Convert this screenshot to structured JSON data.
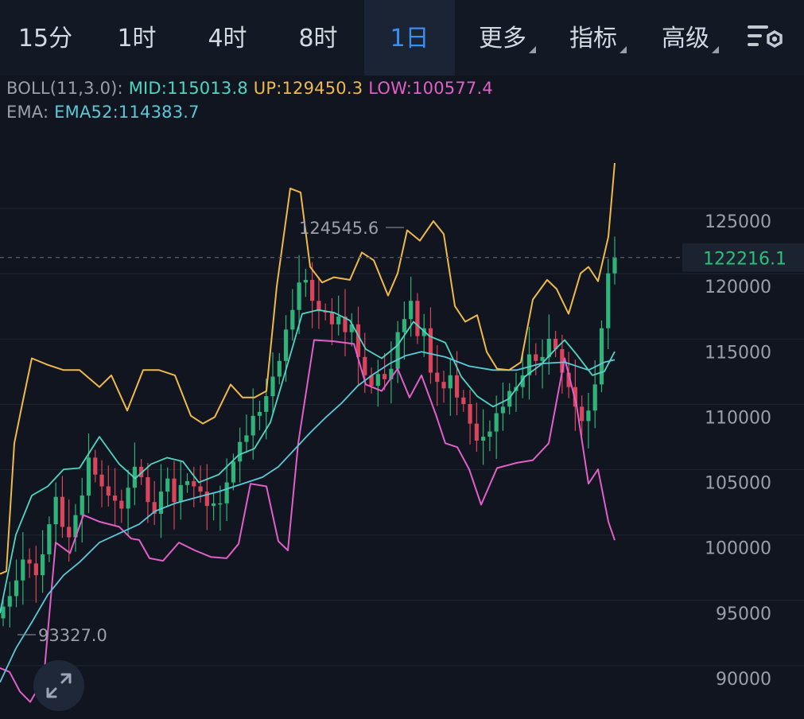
{
  "tabs": [
    {
      "label": "15分",
      "active": false,
      "has_menu": false
    },
    {
      "label": "1时",
      "active": false,
      "has_menu": false
    },
    {
      "label": "4时",
      "active": false,
      "has_menu": false
    },
    {
      "label": "8时",
      "active": false,
      "has_menu": false
    },
    {
      "label": "1日",
      "active": true,
      "has_menu": false
    },
    {
      "label": "更多",
      "active": false,
      "has_menu": true
    },
    {
      "label": "指标",
      "active": false,
      "has_menu": true
    },
    {
      "label": "高级",
      "active": false,
      "has_menu": true
    }
  ],
  "settings_icon": "chart-settings-icon",
  "expand_icon": "expand-arrows-icon",
  "indicators": {
    "boll": {
      "prefix": "BOLL(11,3.0):",
      "mid": "MID:115013.8",
      "up": "UP:129450.3",
      "low": "LOW:100577.4"
    },
    "ema": {
      "prefix": "EMA:",
      "ema52": "EMA52:114383.7"
    }
  },
  "colors": {
    "background": "#10151f",
    "tabbar": "#121824",
    "active_tab": "#3d8df0",
    "up_candle": "#2fb37a",
    "down_candle": "#d9455c",
    "boll_up": "#f0b94a",
    "boll_mid": "#4fd6c4",
    "boll_low": "#e060c8",
    "ema52": "#5cc8d8",
    "current_price": "#2fbf7a"
  },
  "chart_data": {
    "type": "candlestick",
    "y_axis_ticks": [
      "125000",
      "120000",
      "115000",
      "110000",
      "105000",
      "100000",
      "95000",
      "90000"
    ],
    "y_range": [
      88000,
      133000
    ],
    "current_price": "122216.1",
    "max_label": "124545.6",
    "min_label": "93327.0",
    "candle_count": 94,
    "closes": [
      95500,
      96300,
      97500,
      99100,
      98800,
      97900,
      99500,
      101800,
      103900,
      101600,
      100800,
      102500,
      104000,
      106900,
      105600,
      104700,
      104000,
      103600,
      103000,
      104600,
      106200,
      105400,
      103500,
      102600,
      104300,
      105300,
      103500,
      104800,
      105100,
      104700,
      104300,
      103200,
      103400,
      103400,
      105000,
      106600,
      108100,
      108600,
      110100,
      110400,
      111600,
      113100,
      114300,
      116700,
      118200,
      120300,
      120500,
      118900,
      118100,
      118000,
      117100,
      117700,
      116500,
      117100,
      114600,
      113200,
      112400,
      113300,
      112900,
      113700,
      116500,
      117500,
      118900,
      116200,
      116800,
      113400,
      112700,
      112200,
      113200,
      111500,
      111000,
      109500,
      108200,
      108500,
      108900,
      110300,
      110800,
      112000,
      112300,
      113200,
      114800,
      114300,
      114600,
      116000,
      115200,
      113400,
      112300,
      110800,
      109700,
      110500,
      112500,
      116800,
      121000,
      122216.1
    ],
    "boll_up_points": [
      [
        0,
        98000
      ],
      [
        8,
        98200
      ],
      [
        18,
        108000
      ],
      [
        28,
        111000
      ],
      [
        40,
        114500
      ],
      [
        60,
        114000
      ],
      [
        80,
        113600
      ],
      [
        100,
        113600
      ],
      [
        125,
        112300
      ],
      [
        140,
        113200
      ],
      [
        160,
        110500
      ],
      [
        180,
        113600
      ],
      [
        200,
        113600
      ],
      [
        220,
        113200
      ],
      [
        240,
        110100
      ],
      [
        255,
        109500
      ],
      [
        270,
        110000
      ],
      [
        290,
        112500
      ],
      [
        305,
        111500
      ],
      [
        320,
        111500
      ],
      [
        335,
        112000
      ],
      [
        348,
        120000
      ],
      [
        365,
        127500
      ],
      [
        378,
        127200
      ],
      [
        390,
        121500
      ],
      [
        405,
        120300
      ],
      [
        420,
        120700
      ],
      [
        440,
        120500
      ],
      [
        455,
        122600
      ],
      [
        470,
        122000
      ],
      [
        488,
        119300
      ],
      [
        500,
        121000
      ],
      [
        512,
        124300
      ],
      [
        528,
        123500
      ],
      [
        545,
        125000
      ],
      [
        558,
        124000
      ],
      [
        572,
        118500
      ],
      [
        585,
        117300
      ],
      [
        600,
        117800
      ],
      [
        612,
        115000
      ],
      [
        625,
        113700
      ],
      [
        640,
        113600
      ],
      [
        655,
        114200
      ],
      [
        670,
        119000
      ],
      [
        688,
        120500
      ],
      [
        700,
        119800
      ],
      [
        715,
        117900
      ],
      [
        730,
        121000
      ],
      [
        740,
        121500
      ],
      [
        752,
        120400
      ],
      [
        765,
        123800
      ],
      [
        773,
        129450.3
      ]
    ],
    "boll_mid_points": [
      [
        0,
        95000
      ],
      [
        20,
        101000
      ],
      [
        40,
        104000
      ],
      [
        60,
        104700
      ],
      [
        80,
        106000
      ],
      [
        100,
        106100
      ],
      [
        125,
        108500
      ],
      [
        150,
        106400
      ],
      [
        170,
        105300
      ],
      [
        190,
        106400
      ],
      [
        210,
        106900
      ],
      [
        230,
        106600
      ],
      [
        250,
        105000
      ],
      [
        275,
        105600
      ],
      [
        300,
        107100
      ],
      [
        320,
        107600
      ],
      [
        340,
        109600
      ],
      [
        360,
        113700
      ],
      [
        380,
        117900
      ],
      [
        400,
        118200
      ],
      [
        420,
        118000
      ],
      [
        440,
        117400
      ],
      [
        460,
        115200
      ],
      [
        480,
        114500
      ],
      [
        500,
        115500
      ],
      [
        520,
        117300
      ],
      [
        540,
        116200
      ],
      [
        560,
        115700
      ],
      [
        580,
        113100
      ],
      [
        600,
        111600
      ],
      [
        620,
        110800
      ],
      [
        640,
        111400
      ],
      [
        660,
        113100
      ],
      [
        680,
        114000
      ],
      [
        700,
        115300
      ],
      [
        710,
        115900
      ],
      [
        725,
        114800
      ],
      [
        745,
        113200
      ],
      [
        760,
        113500
      ],
      [
        773,
        115013.8
      ]
    ],
    "boll_low_points": [
      [
        0,
        90800
      ],
      [
        12,
        90500
      ],
      [
        25,
        89000
      ],
      [
        38,
        88200
      ],
      [
        55,
        90000
      ],
      [
        70,
        100400
      ],
      [
        88,
        99600
      ],
      [
        105,
        102500
      ],
      [
        125,
        102000
      ],
      [
        150,
        101600
      ],
      [
        165,
        100700
      ],
      [
        175,
        100600
      ],
      [
        188,
        99200
      ],
      [
        205,
        99000
      ],
      [
        225,
        100400
      ],
      [
        245,
        99800
      ],
      [
        265,
        99300
      ],
      [
        285,
        99200
      ],
      [
        300,
        100300
      ],
      [
        315,
        104900
      ],
      [
        335,
        104700
      ],
      [
        350,
        100500
      ],
      [
        362,
        99800
      ],
      [
        375,
        108000
      ],
      [
        395,
        115900
      ],
      [
        420,
        115800
      ],
      [
        445,
        115600
      ],
      [
        460,
        112500
      ],
      [
        480,
        112000
      ],
      [
        500,
        113700
      ],
      [
        515,
        111500
      ],
      [
        530,
        113200
      ],
      [
        548,
        110200
      ],
      [
        560,
        108000
      ],
      [
        575,
        107700
      ],
      [
        590,
        106000
      ],
      [
        605,
        103300
      ],
      [
        625,
        106100
      ],
      [
        650,
        106500
      ],
      [
        670,
        106700
      ],
      [
        690,
        108000
      ],
      [
        710,
        114500
      ],
      [
        725,
        110900
      ],
      [
        740,
        104900
      ],
      [
        752,
        106000
      ],
      [
        765,
        102000
      ],
      [
        773,
        100577.4
      ]
    ],
    "ema52_points": [
      [
        0,
        89700
      ],
      [
        20,
        92300
      ],
      [
        40,
        94300
      ],
      [
        60,
        96400
      ],
      [
        80,
        97900
      ],
      [
        100,
        98900
      ],
      [
        125,
        100400
      ],
      [
        150,
        101100
      ],
      [
        175,
        101800
      ],
      [
        195,
        102800
      ],
      [
        220,
        103400
      ],
      [
        250,
        103900
      ],
      [
        275,
        104300
      ],
      [
        300,
        104800
      ],
      [
        330,
        105400
      ],
      [
        350,
        106200
      ],
      [
        370,
        107500
      ],
      [
        390,
        108800
      ],
      [
        410,
        110000
      ],
      [
        430,
        111100
      ],
      [
        450,
        112400
      ],
      [
        470,
        113300
      ],
      [
        490,
        114100
      ],
      [
        510,
        114700
      ],
      [
        530,
        115000
      ],
      [
        560,
        114600
      ],
      [
        590,
        113900
      ],
      [
        620,
        113600
      ],
      [
        650,
        113600
      ],
      [
        680,
        114100
      ],
      [
        710,
        114200
      ],
      [
        740,
        113600
      ],
      [
        760,
        114200
      ],
      [
        773,
        114383.7
      ]
    ]
  }
}
